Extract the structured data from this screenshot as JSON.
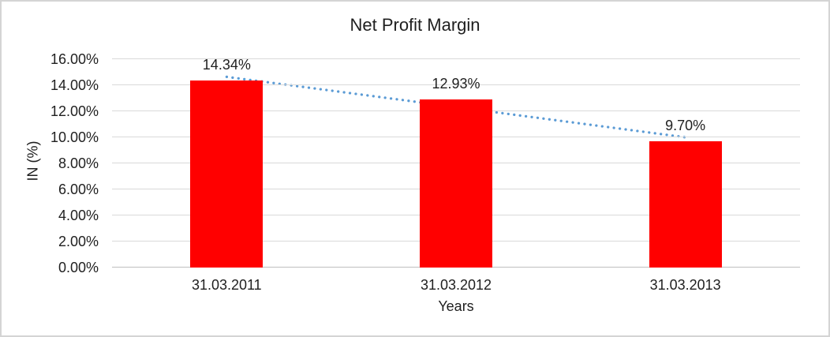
{
  "chart_data": {
    "type": "bar",
    "title": "Net Profit Margin",
    "xlabel": "Years",
    "ylabel": "IN (%)",
    "categories": [
      "31.03.2011",
      "31.03.2012",
      "31.03.2013"
    ],
    "values": [
      14.34,
      12.93,
      9.7
    ],
    "data_labels": [
      "14.34%",
      "12.93%",
      "9.70%"
    ],
    "ylim": [
      0,
      16
    ],
    "ytick_labels": [
      "0.00%",
      "2.00%",
      "4.00%",
      "6.00%",
      "8.00%",
      "10.00%",
      "12.00%",
      "14.00%",
      "16.00%"
    ],
    "grid": true,
    "legend": "none",
    "trendline": {
      "type": "linear",
      "style": "dotted",
      "color": "#5b9bd5"
    }
  },
  "colors": {
    "bar": "#ff0000",
    "trendline": "#5b9bd5",
    "gridline": "#d9d9d9",
    "axis_line": "#bfbfbf",
    "text": "#1f1f1f",
    "frame_border": "#d4d4d4",
    "background": "#ffffff"
  }
}
